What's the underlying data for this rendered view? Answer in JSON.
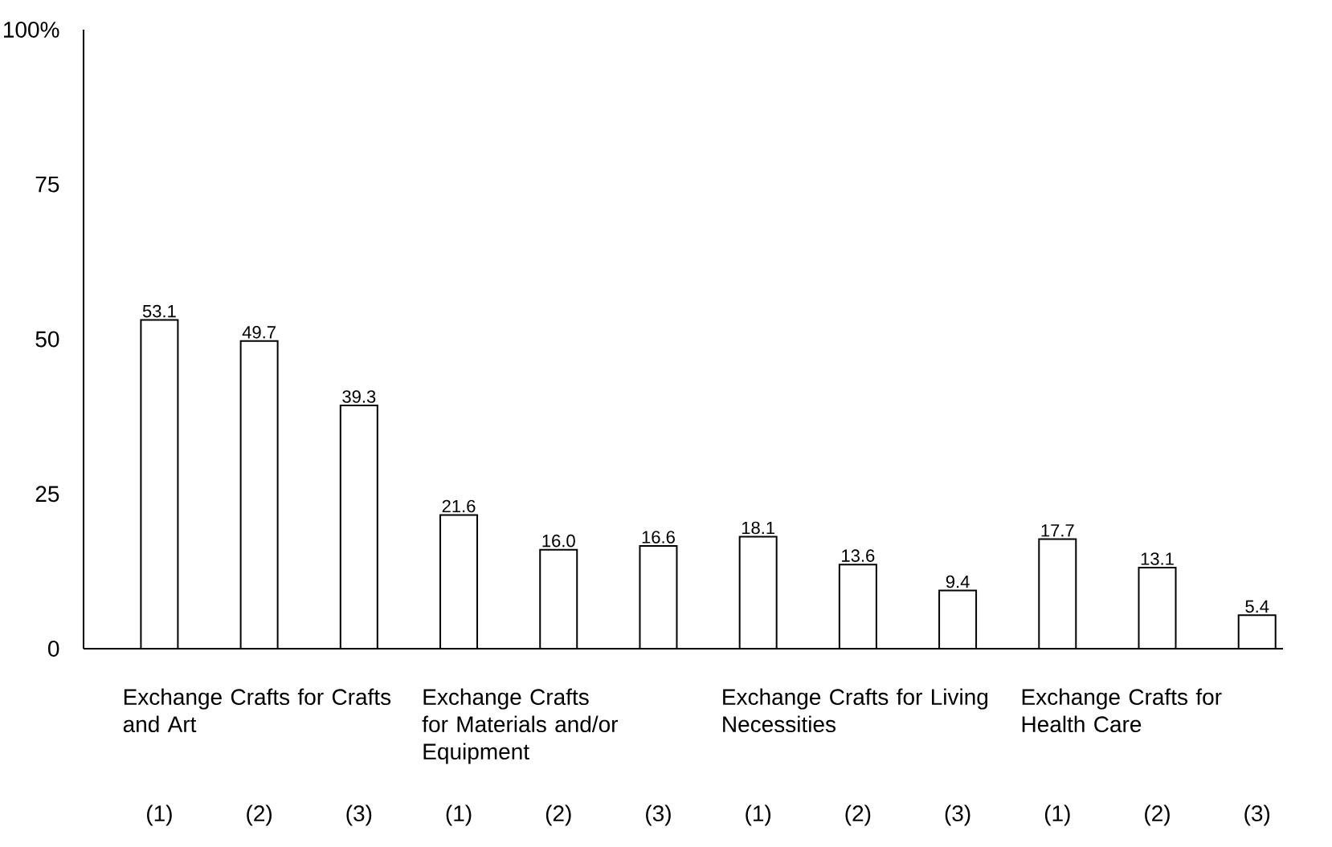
{
  "chart_data": {
    "type": "bar",
    "categories": [
      "(1)",
      "(2)",
      "(3)",
      "(1)",
      "(2)",
      "(3)",
      "(1)",
      "(2)",
      "(3)",
      "(1)",
      "(2)",
      "(3)"
    ],
    "values": [
      53.1,
      49.7,
      39.3,
      21.6,
      16.0,
      16.6,
      18.1,
      13.6,
      9.4,
      17.7,
      13.1,
      5.4
    ],
    "color": "#ffffff",
    "value_labels": [
      "53.1",
      "49.7",
      "39.3",
      "21.6",
      "16.0",
      "16.6",
      "18.1",
      "13.6",
      "9.4",
      "17.7",
      "13.1",
      "5.4"
    ],
    "ylim": [
      0,
      100
    ],
    "yticks": [
      0,
      25,
      50,
      75,
      {
        "value": 100,
        "label": "100%"
      }
    ],
    "annotations": [
      "Exchange Crafts for Crafts and Art",
      "Exchange Crafts for Materials and/or Equipment",
      "Exchange Crafts for Living Necessities",
      "Exchange Crafts for Health Care"
    ]
  }
}
